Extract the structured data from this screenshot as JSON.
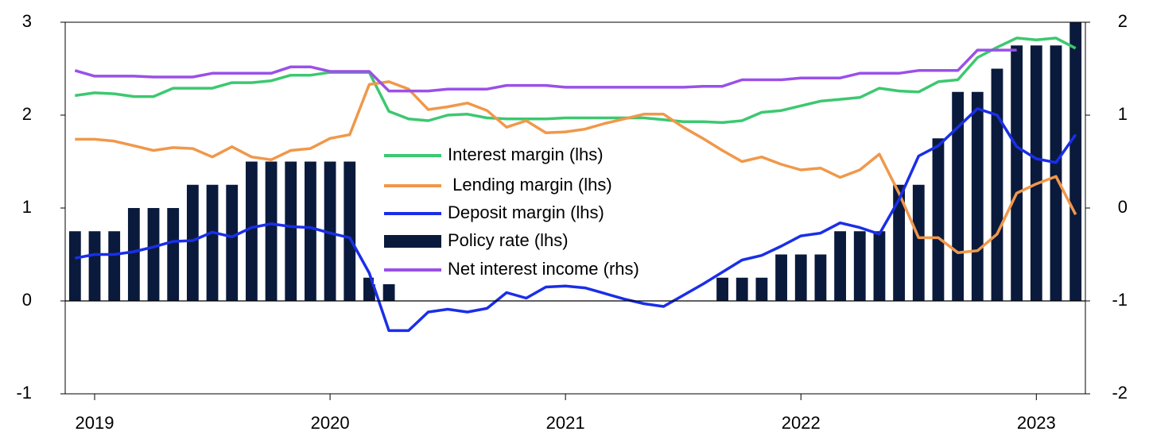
{
  "chart_data": {
    "type": "bar-line",
    "categories": [
      null,
      "2019",
      null,
      null,
      null,
      null,
      null,
      null,
      null,
      null,
      null,
      null,
      null,
      "2020",
      null,
      null,
      null,
      null,
      null,
      null,
      null,
      null,
      null,
      null,
      null,
      "2021",
      null,
      null,
      null,
      null,
      null,
      null,
      null,
      null,
      null,
      null,
      null,
      "2022",
      null,
      null,
      null,
      null,
      null,
      null,
      null,
      null,
      null,
      null,
      null,
      "2023",
      null,
      null
    ],
    "ylim": [
      -1,
      3
    ],
    "yticks": [
      -1,
      0,
      1,
      2,
      3
    ],
    "y2lim": [
      -2,
      2
    ],
    "y2ticks": [
      -2,
      -1,
      0,
      1,
      2
    ],
    "series": [
      {
        "name": "Interest margin (lhs)",
        "type": "line",
        "color": "#3cc870",
        "values": [
          2.21,
          2.24,
          2.23,
          2.2,
          2.2,
          2.29,
          2.29,
          2.29,
          2.35,
          2.35,
          2.37,
          2.43,
          2.43,
          2.46,
          2.46,
          2.46,
          2.04,
          1.96,
          1.94,
          2.0,
          2.01,
          1.97,
          1.96,
          1.96,
          1.96,
          1.97,
          1.97,
          1.97,
          1.97,
          1.97,
          1.95,
          1.93,
          1.93,
          1.92,
          1.94,
          2.03,
          2.05,
          2.1,
          2.15,
          2.17,
          2.19,
          2.29,
          2.26,
          2.25,
          2.36,
          2.38,
          2.62,
          2.73,
          2.83,
          2.81,
          2.83,
          2.72
        ]
      },
      {
        "name": " Lending margin (lhs)",
        "type": "line",
        "color": "#f0984a",
        "values": [
          1.74,
          1.74,
          1.72,
          1.67,
          1.62,
          1.65,
          1.64,
          1.55,
          1.66,
          1.55,
          1.52,
          1.62,
          1.64,
          1.75,
          1.79,
          2.33,
          2.36,
          2.28,
          2.06,
          2.09,
          2.13,
          2.05,
          1.87,
          1.94,
          1.81,
          1.82,
          1.85,
          1.91,
          1.96,
          2.01,
          2.01,
          1.87,
          1.75,
          1.62,
          1.5,
          1.55,
          1.47,
          1.41,
          1.43,
          1.33,
          1.41,
          1.58,
          1.16,
          0.68,
          0.68,
          0.52,
          0.54,
          0.72,
          1.16,
          1.26,
          1.34,
          0.93
        ]
      },
      {
        "name": "Deposit margin (lhs)",
        "type": "line",
        "color": "#1a2ee8",
        "values": [
          0.46,
          0.5,
          0.5,
          0.53,
          0.58,
          0.64,
          0.65,
          0.74,
          0.69,
          0.79,
          0.83,
          0.8,
          0.79,
          0.73,
          0.68,
          0.3,
          -0.32,
          -0.32,
          -0.12,
          -0.09,
          -0.12,
          -0.08,
          0.09,
          0.03,
          0.15,
          0.16,
          0.14,
          0.08,
          0.02,
          -0.03,
          -0.06,
          0.06,
          0.18,
          0.31,
          0.44,
          0.49,
          0.59,
          0.7,
          0.73,
          0.84,
          0.79,
          0.72,
          1.09,
          1.56,
          1.67,
          1.87,
          2.07,
          2.0,
          1.66,
          1.53,
          1.49,
          1.79
        ]
      },
      {
        "name": "Policy rate (lhs)",
        "type": "bar",
        "color": "#0a1a3c",
        "values": [
          0.75,
          0.75,
          0.75,
          1.0,
          1.0,
          1.0,
          1.25,
          1.25,
          1.25,
          1.5,
          1.5,
          1.5,
          1.5,
          1.5,
          1.5,
          0.25,
          0.25,
          0,
          0,
          0,
          0,
          0,
          0,
          0,
          0,
          0,
          0,
          0,
          0,
          0,
          0,
          0,
          0,
          0.25,
          0.25,
          0.25,
          0.5,
          0.5,
          0.5,
          0.75,
          0.75,
          0.75,
          1.25,
          1.25,
          1.75,
          2.25,
          2.25,
          2.5,
          2.75,
          2.75,
          2.75,
          3.0
        ]
      },
      {
        "name": "Net interest income (rhs)",
        "type": "line",
        "axis": "y2",
        "color": "#9a50e8",
        "values": [
          1.48,
          1.42,
          1.42,
          1.42,
          1.41,
          1.41,
          1.41,
          1.45,
          1.45,
          1.45,
          1.45,
          1.52,
          1.52,
          1.47,
          1.47,
          1.47,
          1.26,
          1.26,
          1.26,
          1.28,
          1.28,
          1.28,
          1.32,
          1.32,
          1.32,
          1.3,
          1.3,
          1.3,
          1.3,
          1.3,
          1.3,
          1.3,
          1.31,
          1.31,
          1.38,
          1.38,
          1.38,
          1.4,
          1.4,
          1.4,
          1.45,
          1.45,
          1.45,
          1.48,
          1.48,
          1.48,
          1.7,
          1.7,
          1.7,
          null,
          null,
          null
        ]
      }
    ]
  }
}
